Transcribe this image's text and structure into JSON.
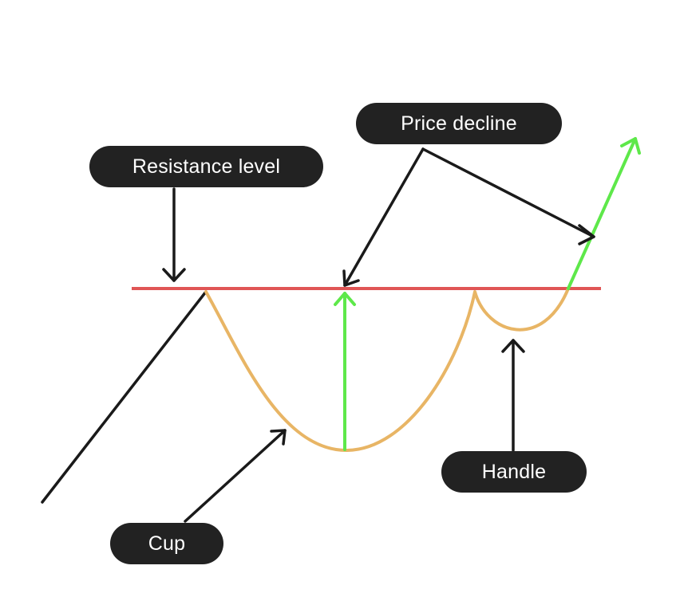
{
  "labels": {
    "resistance": "Resistance level",
    "price_decline": "Price decline",
    "handle": "Handle",
    "cup": "Cup"
  },
  "colors": {
    "background": "#ffffff",
    "label_background": "#222222",
    "label_text": "#ffffff",
    "resistance_line": "#e05555",
    "cup_curve": "#e8b565",
    "breakout_arrow": "#5ee84a",
    "pointer_arrows": "#1a1a1a"
  }
}
